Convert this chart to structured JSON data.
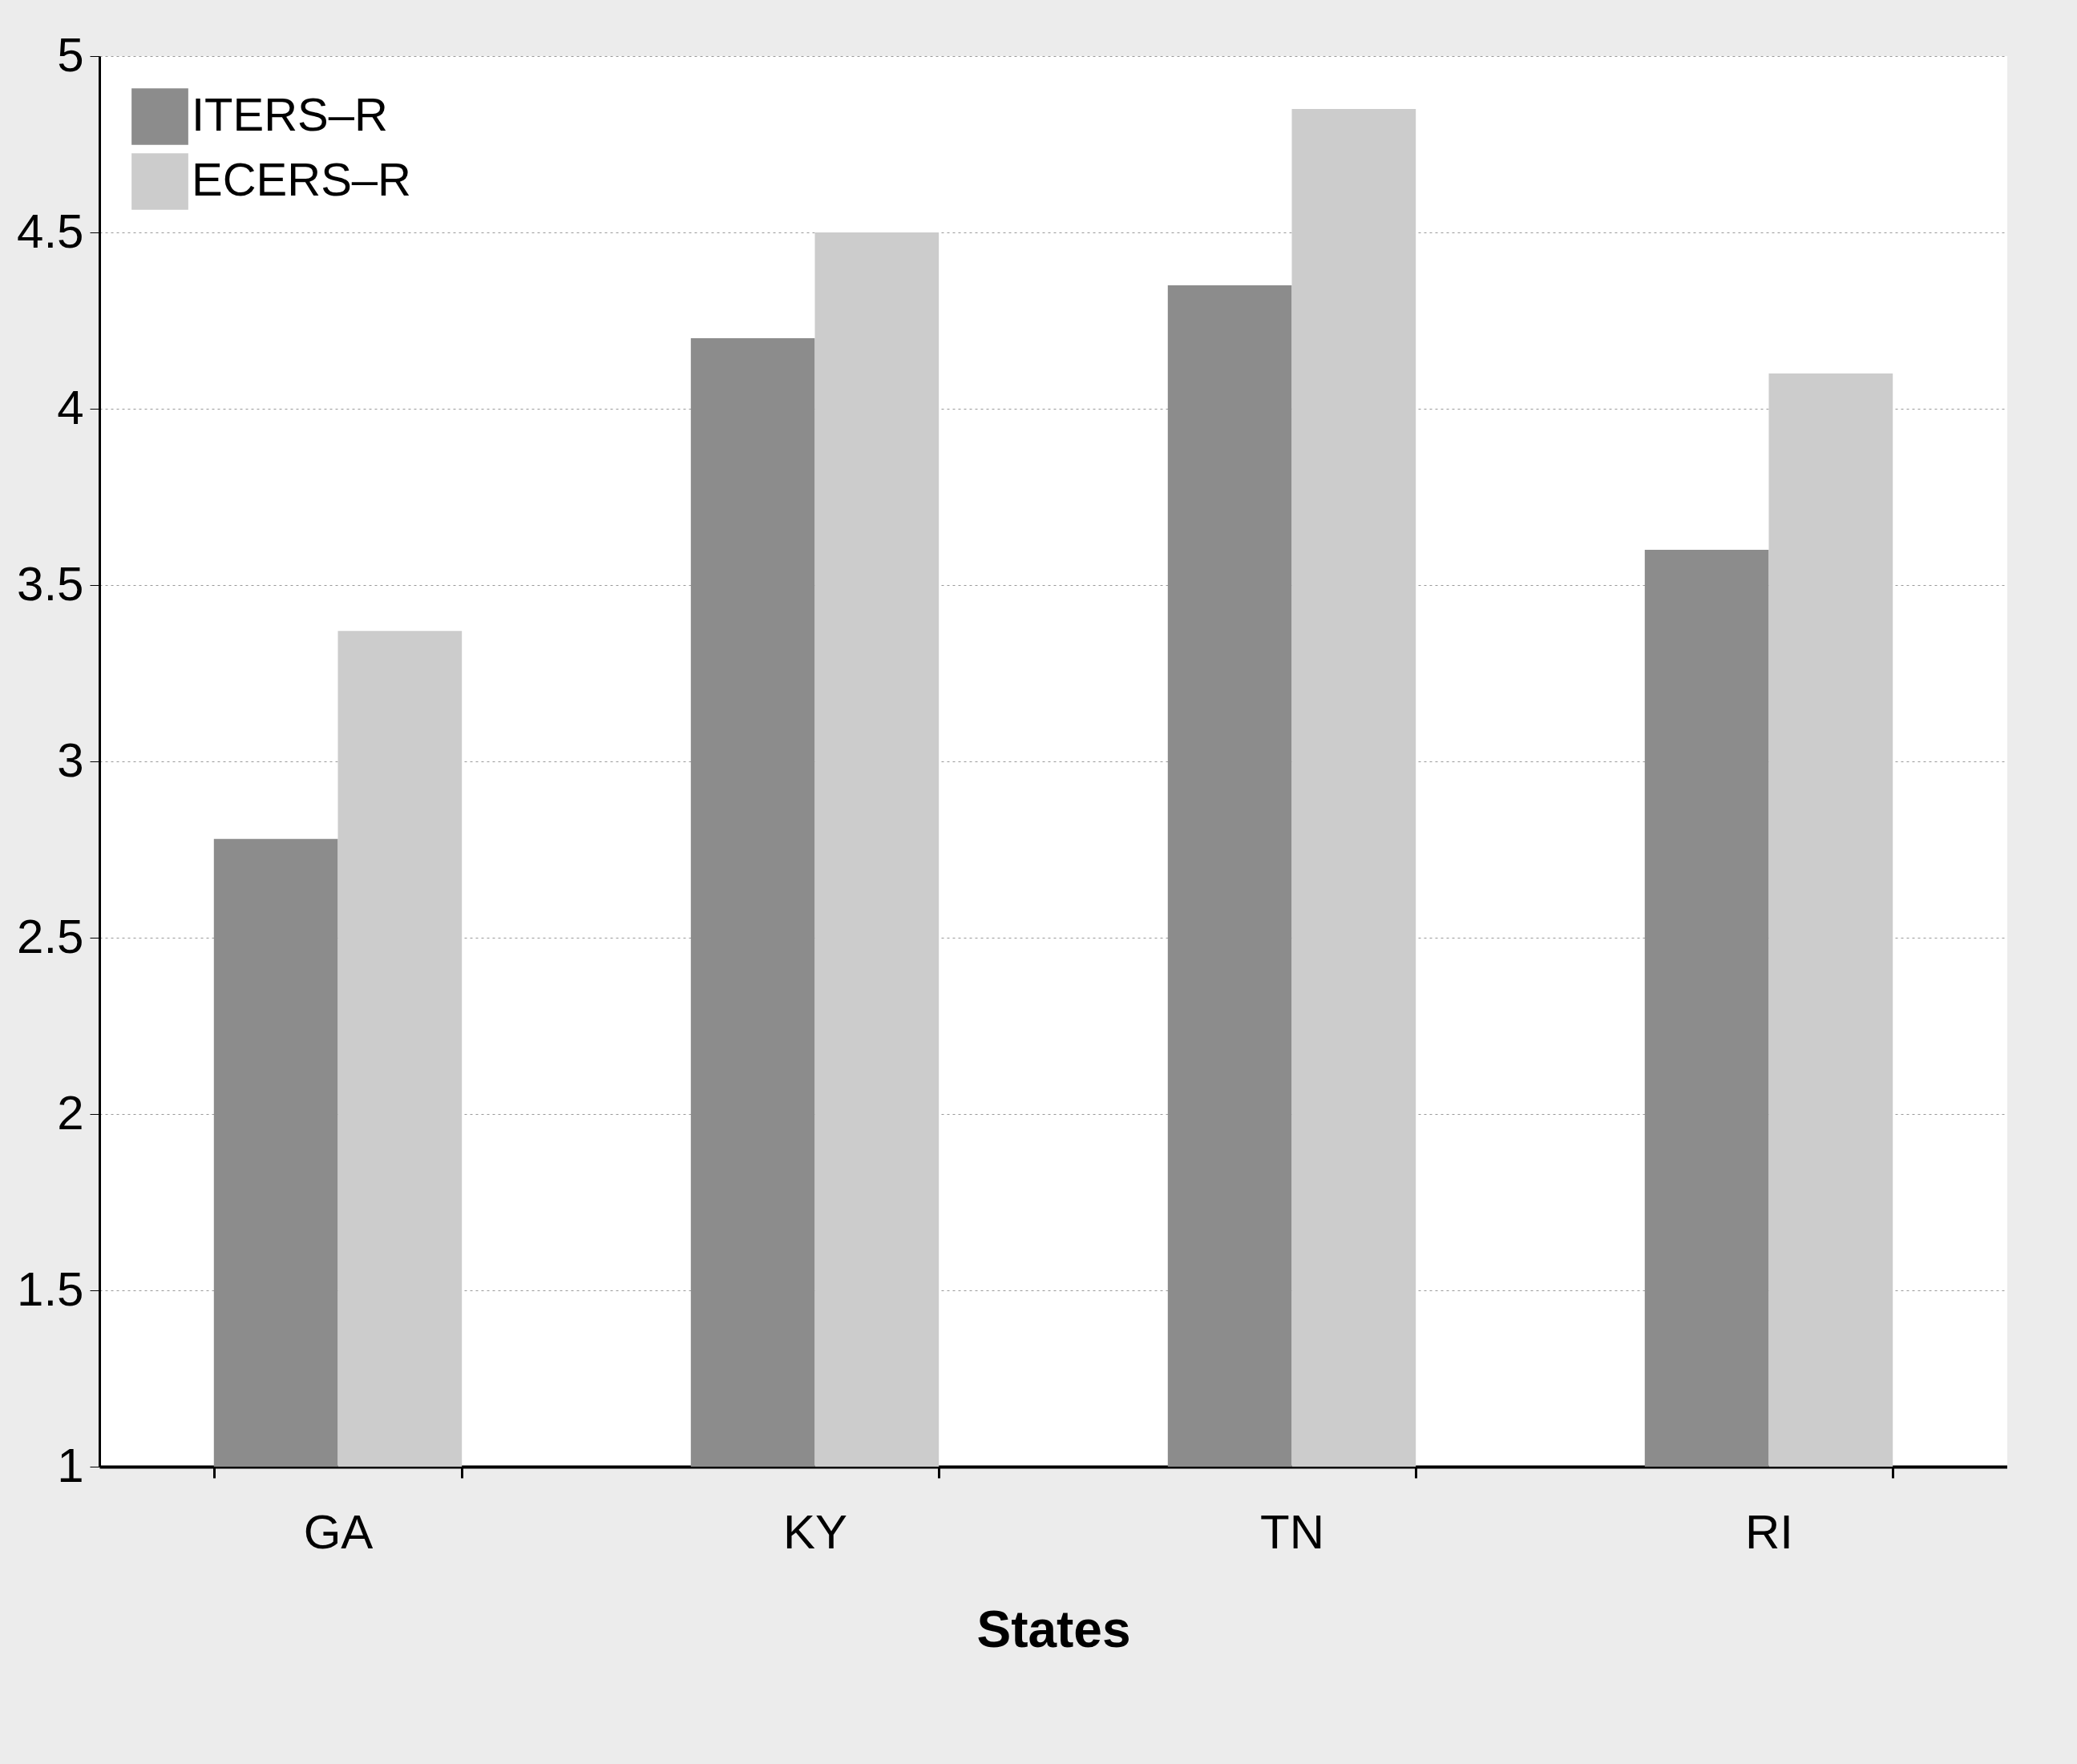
{
  "chart_data": {
    "type": "bar",
    "xlabel": "States",
    "categories": [
      "GA",
      "KY",
      "TN",
      "RI"
    ],
    "series": [
      {
        "name": "ITERS–R",
        "color": "#8c8c8c",
        "values": [
          2.78,
          4.2,
          4.35,
          3.6
        ]
      },
      {
        "name": "ECERS–R",
        "color": "#cccccc",
        "values": [
          3.37,
          4.5,
          4.85,
          4.1
        ]
      }
    ],
    "ylim": [
      1,
      5
    ],
    "yticks": [
      1,
      1.5,
      2,
      2.5,
      3,
      3.5,
      4,
      4.5,
      5
    ],
    "grid": "y",
    "legend": "top left"
  }
}
